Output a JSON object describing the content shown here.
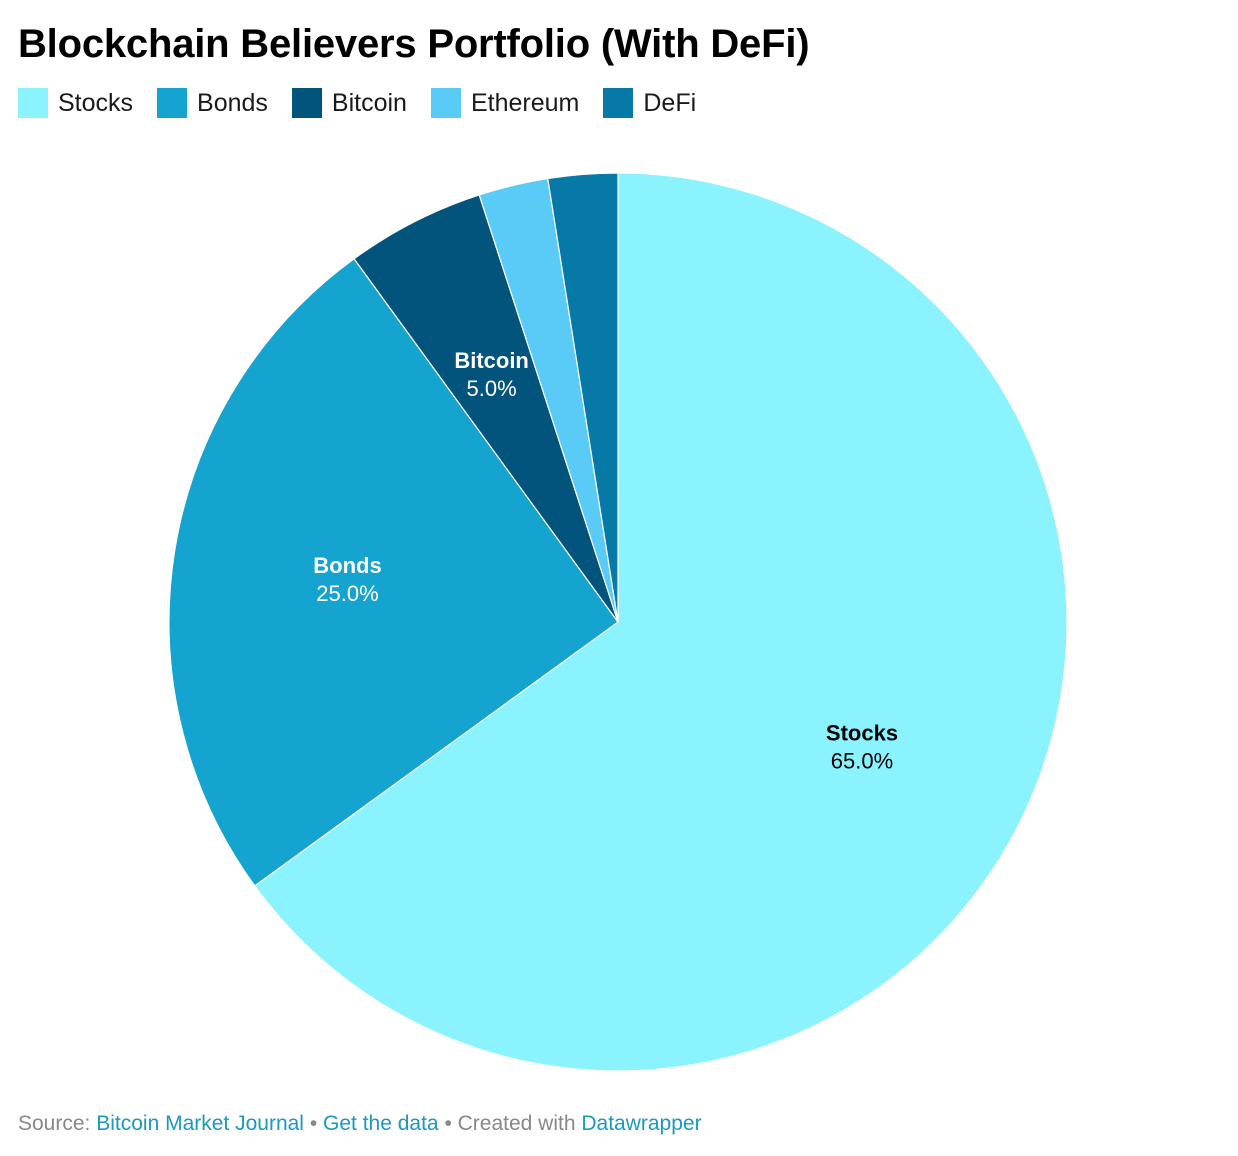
{
  "title": "Blockchain Believers Portfolio (With DeFi)",
  "footer": {
    "source_prefix": "Source: ",
    "source_name": "Bitcoin Market Journal",
    "sep1": " • ",
    "get_data": "Get the data",
    "sep2": " • Created with ",
    "tool": "Datawrapper"
  },
  "chart_data": {
    "type": "pie",
    "title": "Blockchain Believers Portfolio (With DeFi)",
    "legend_position": "top-left",
    "slices": [
      {
        "name": "Stocks",
        "value": 65.0,
        "label": "65.0%",
        "color": "#8af3fe",
        "label_color": "#000000",
        "show_label": true
      },
      {
        "name": "Bonds",
        "value": 25.0,
        "label": "25.0%",
        "color": "#15a3cf",
        "label_color": "#ffffff",
        "show_label": true
      },
      {
        "name": "Bitcoin",
        "value": 5.0,
        "label": "5.0%",
        "color": "#03547c",
        "label_color": "#ffffff",
        "show_label": true
      },
      {
        "name": "Ethereum",
        "value": 2.5,
        "label": "2.5%",
        "color": "#5acbf6",
        "label_color": "#000000",
        "show_label": false
      },
      {
        "name": "DeFi",
        "value": 2.5,
        "label": "2.5%",
        "color": "#0679a6",
        "label_color": "#ffffff",
        "show_label": false
      }
    ]
  }
}
